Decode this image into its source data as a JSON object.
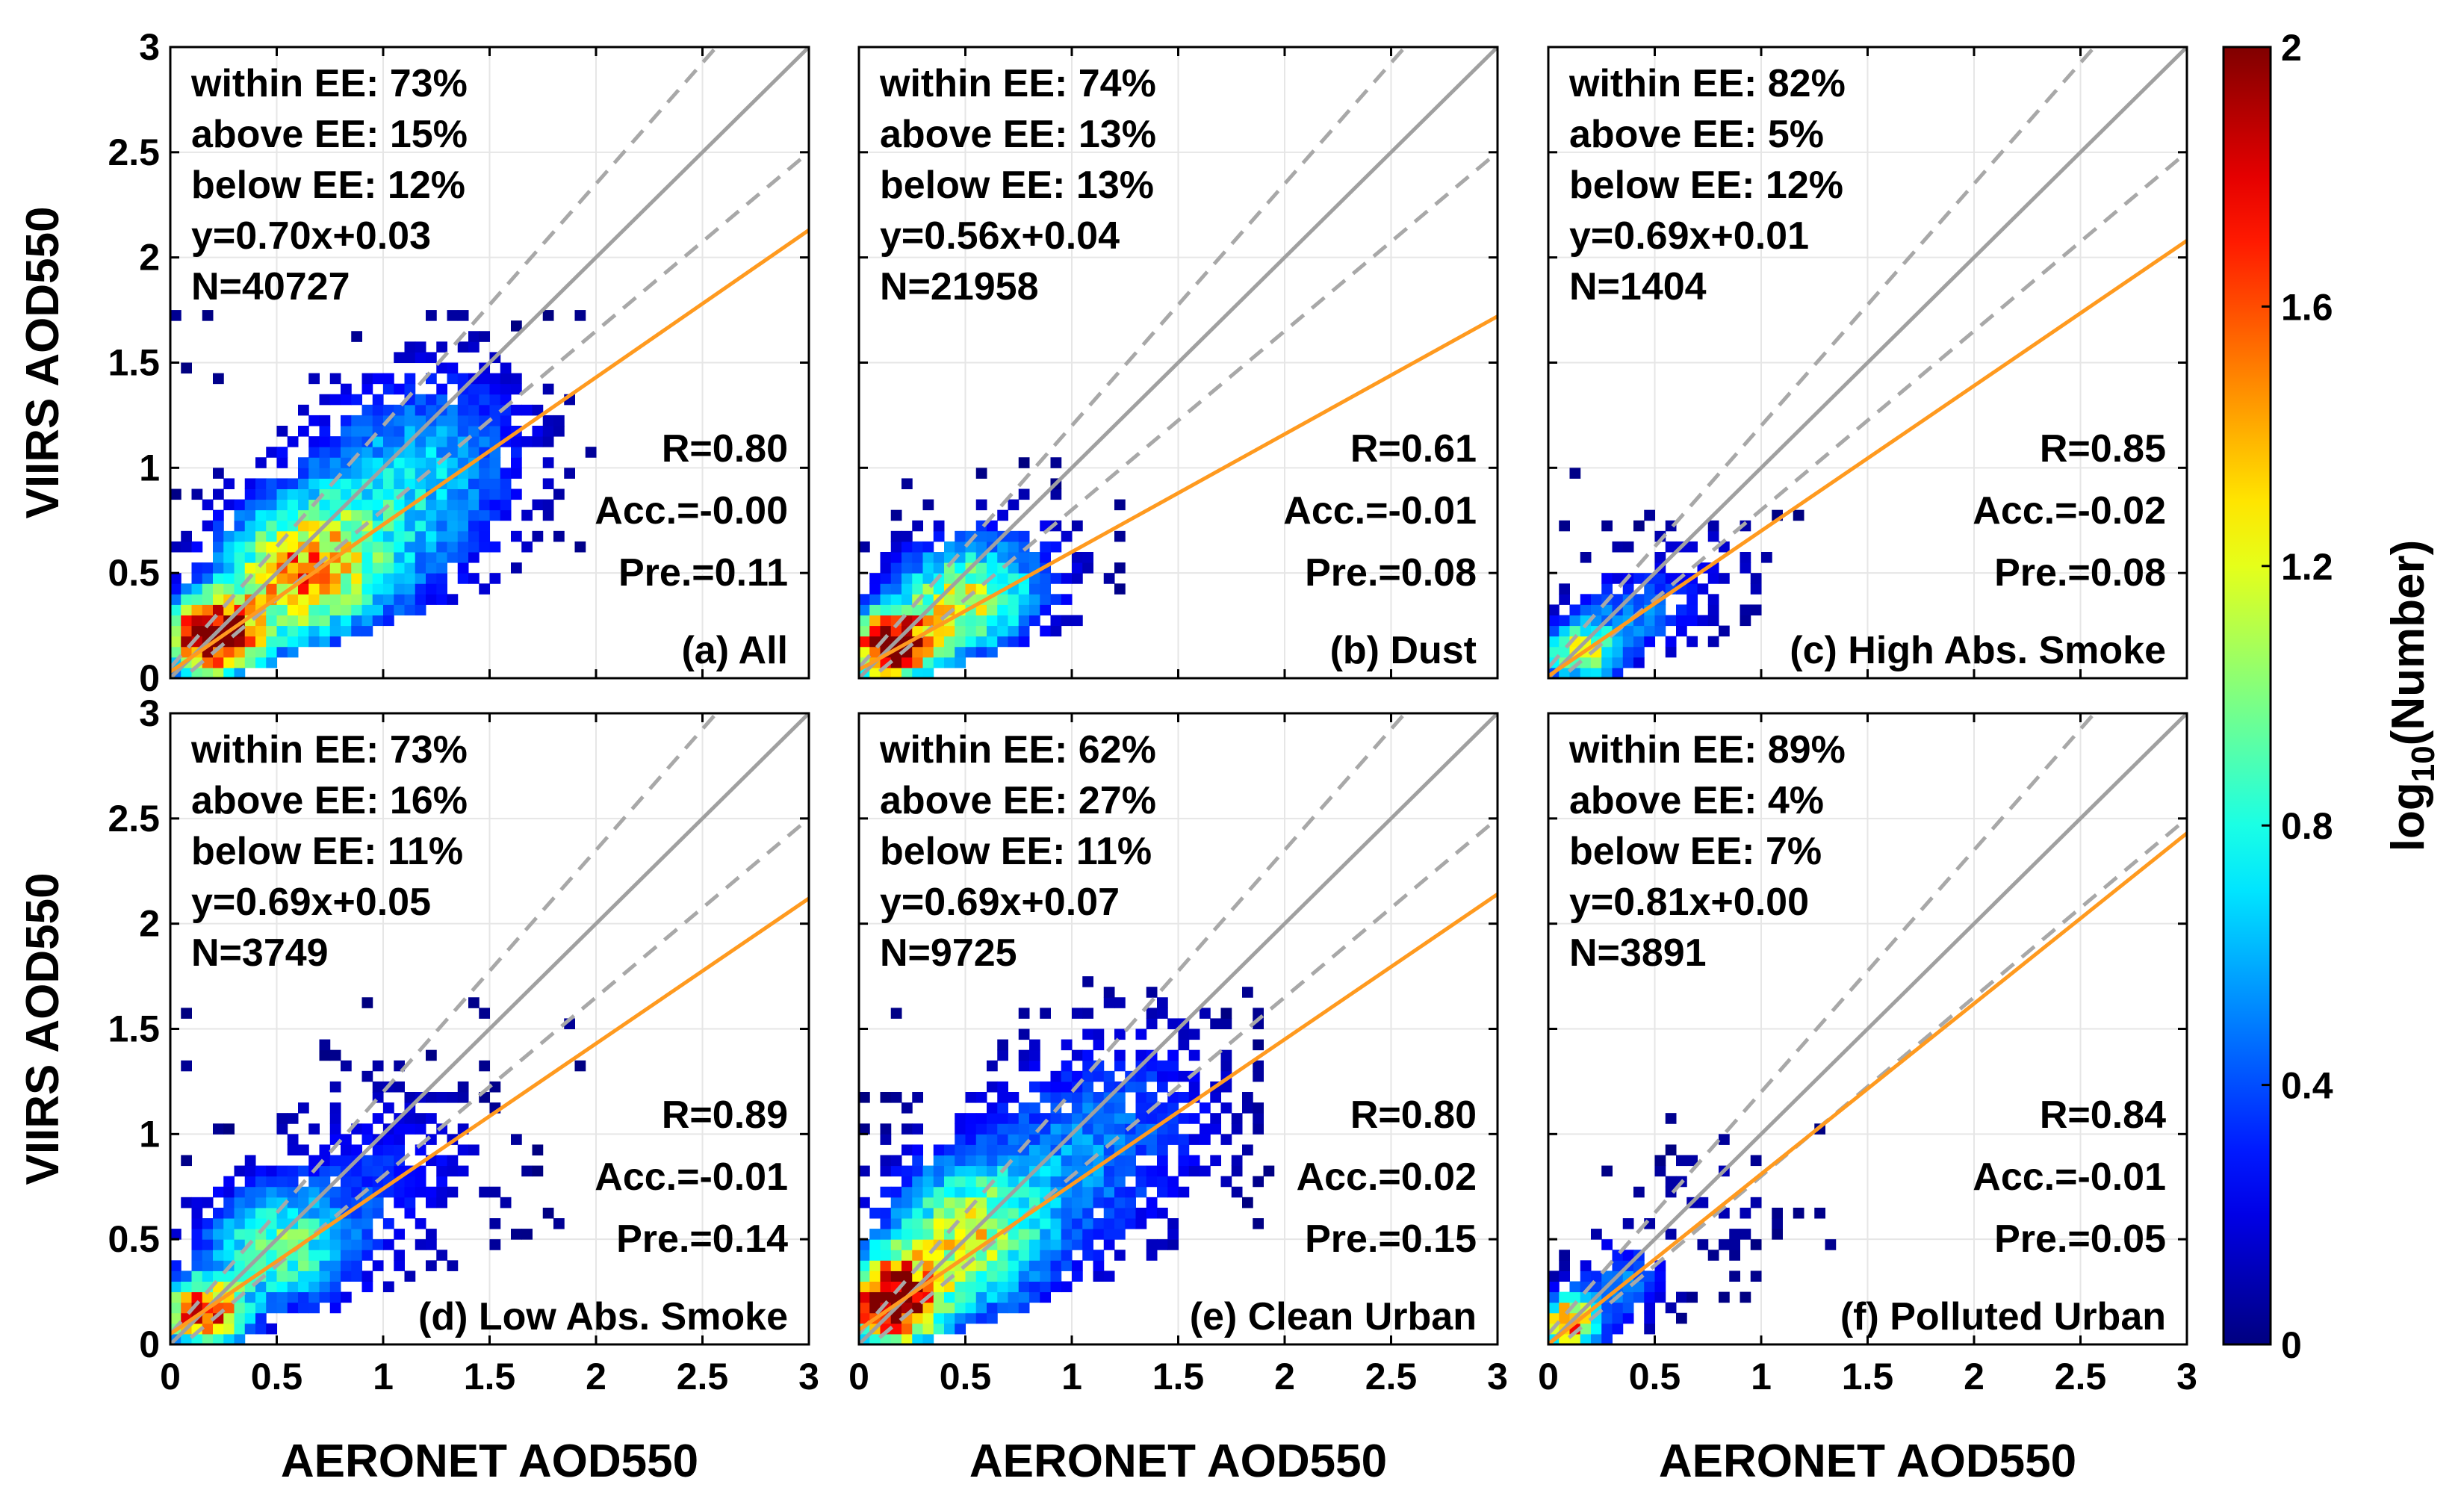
{
  "chart_data": {
    "type": "heatmap",
    "shared": {
      "xlabel": "AERONET AOD550",
      "ylabel": "VIIRS AOD550",
      "xlim": [
        0,
        3
      ],
      "ylim": [
        0,
        3
      ],
      "x_ticks": [
        "0",
        "0.5",
        "1",
        "1.5",
        "2",
        "2.5",
        "3"
      ],
      "y_ticks": [
        "0",
        "0.5",
        "1",
        "1.5",
        "2",
        "2.5",
        "3"
      ],
      "grid": true,
      "reference_lines": {
        "one_to_one": "solid gray line y = x",
        "expected_error": "dashed gray lines y = x ± (0.05 + 0.15x)",
        "regression": "orange line (fit per panel)"
      },
      "colorbar": {
        "label_main": "log",
        "label_sub": "10",
        "label_rest": "(Number)",
        "range": [
          0,
          2
        ],
        "ticks": [
          "0",
          "0.4",
          "0.8",
          "1.2",
          "1.6",
          "2"
        ],
        "colormap": "jet"
      },
      "colors": {
        "one_to_one": "#a0a0a0",
        "ee_lines": "#a8a8a8",
        "regression": "#ff9a1f",
        "grid": "#e6e6e6"
      }
    },
    "panels": [
      {
        "label": "(a) All",
        "stats": [
          "within EE: 73%",
          "above EE: 15%",
          "below EE: 12%",
          "y=0.70x+0.03",
          "N=40727"
        ],
        "metrics": [
          "R=0.80",
          "Acc.=-0.00",
          "Pre.=0.11"
        ],
        "slope": 0.7,
        "intercept": 0.03,
        "density": [
          {
            "x": 0.2,
            "y": 0.2,
            "sx": 0.16,
            "sy": 0.13,
            "peak": 2.1
          },
          {
            "x": 0.6,
            "y": 0.5,
            "sx": 0.25,
            "sy": 0.22,
            "peak": 1.3
          },
          {
            "x": 1.0,
            "y": 0.8,
            "sx": 0.35,
            "sy": 0.35,
            "peak": 0.6
          },
          {
            "x": 1.35,
            "y": 1.15,
            "sx": 0.3,
            "sy": 0.3,
            "peak": 0.3
          }
        ],
        "extent": {
          "x": [
            0,
            2.0
          ],
          "y": [
            0,
            1.8
          ]
        }
      },
      {
        "label": "(b) Dust",
        "stats": [
          "within EE: 74%",
          "above EE: 13%",
          "below EE: 13%",
          "y=0.56x+0.04",
          "N=21958"
        ],
        "metrics": [
          "R=0.61",
          "Acc.=-0.01",
          "Pre.=0.08"
        ],
        "slope": 0.56,
        "intercept": 0.04,
        "density": [
          {
            "x": 0.15,
            "y": 0.15,
            "sx": 0.14,
            "sy": 0.11,
            "peak": 2.1
          },
          {
            "x": 0.45,
            "y": 0.35,
            "sx": 0.22,
            "sy": 0.18,
            "peak": 1.0
          },
          {
            "x": 0.7,
            "y": 0.5,
            "sx": 0.25,
            "sy": 0.22,
            "peak": 0.35
          }
        ],
        "extent": {
          "x": [
            0,
            1.25
          ],
          "y": [
            0,
            1.25
          ]
        }
      },
      {
        "label": "(c) High Abs. Smoke",
        "stats": [
          "within EE: 82%",
          "above EE: 5%",
          "below EE: 12%",
          "y=0.69x+0.01",
          "N=1404"
        ],
        "metrics": [
          "R=0.85",
          "Acc.=-0.02",
          "Pre.=0.08"
        ],
        "slope": 0.69,
        "intercept": 0.01,
        "density": [
          {
            "x": 0.15,
            "y": 0.12,
            "sx": 0.12,
            "sy": 0.1,
            "peak": 1.1
          },
          {
            "x": 0.4,
            "y": 0.3,
            "sx": 0.2,
            "sy": 0.15,
            "peak": 0.45
          },
          {
            "x": 0.75,
            "y": 0.55,
            "sx": 0.25,
            "sy": 0.2,
            "peak": 0.15
          }
        ],
        "extent": {
          "x": [
            0,
            1.3
          ],
          "y": [
            0,
            1.0
          ]
        }
      },
      {
        "label": "(d) Low Abs. Smoke",
        "stats": [
          "within EE: 73%",
          "above EE: 16%",
          "below EE: 11%",
          "y=0.69x+0.05",
          "N=3749"
        ],
        "metrics": [
          "R=0.89",
          "Acc.=-0.01",
          "Pre.=0.14"
        ],
        "slope": 0.69,
        "intercept": 0.05,
        "density": [
          {
            "x": 0.15,
            "y": 0.15,
            "sx": 0.13,
            "sy": 0.11,
            "peak": 1.7
          },
          {
            "x": 0.5,
            "y": 0.45,
            "sx": 0.25,
            "sy": 0.2,
            "peak": 0.9
          },
          {
            "x": 1.0,
            "y": 0.8,
            "sx": 0.35,
            "sy": 0.3,
            "peak": 0.3
          }
        ],
        "extent": {
          "x": [
            0,
            2.0
          ],
          "y": [
            0,
            1.7
          ]
        }
      },
      {
        "label": "(e) Clean Urban",
        "stats": [
          "within EE: 62%",
          "above EE: 27%",
          "below EE: 11%",
          "y=0.69x+0.07",
          "N=9725"
        ],
        "metrics": [
          "R=0.80",
          "Acc.=0.02",
          "Pre.=0.15"
        ],
        "slope": 0.69,
        "intercept": 0.07,
        "density": [
          {
            "x": 0.15,
            "y": 0.2,
            "sx": 0.15,
            "sy": 0.15,
            "peak": 2.1
          },
          {
            "x": 0.5,
            "y": 0.5,
            "sx": 0.25,
            "sy": 0.25,
            "peak": 1.1
          },
          {
            "x": 1.0,
            "y": 0.85,
            "sx": 0.35,
            "sy": 0.35,
            "peak": 0.45
          },
          {
            "x": 1.4,
            "y": 1.2,
            "sx": 0.3,
            "sy": 0.3,
            "peak": 0.2
          }
        ],
        "extent": {
          "x": [
            0,
            2.0
          ],
          "y": [
            0,
            1.8
          ]
        }
      },
      {
        "label": "(f) Polluted Urban",
        "stats": [
          "within EE: 89%",
          "above EE: 4%",
          "below EE: 7%",
          "y=0.81x+0.00",
          "N=3891"
        ],
        "metrics": [
          "R=0.84",
          "Acc.=-0.01",
          "Pre.=0.05"
        ],
        "slope": 0.81,
        "intercept": 0.0,
        "density": [
          {
            "x": 0.1,
            "y": 0.1,
            "sx": 0.1,
            "sy": 0.09,
            "peak": 1.6
          },
          {
            "x": 0.35,
            "y": 0.3,
            "sx": 0.15,
            "sy": 0.13,
            "peak": 0.5
          },
          {
            "x": 0.8,
            "y": 0.7,
            "sx": 0.25,
            "sy": 0.22,
            "peak": 0.1
          }
        ],
        "extent": {
          "x": [
            0,
            1.45
          ],
          "y": [
            0,
            1.1
          ]
        }
      }
    ]
  }
}
